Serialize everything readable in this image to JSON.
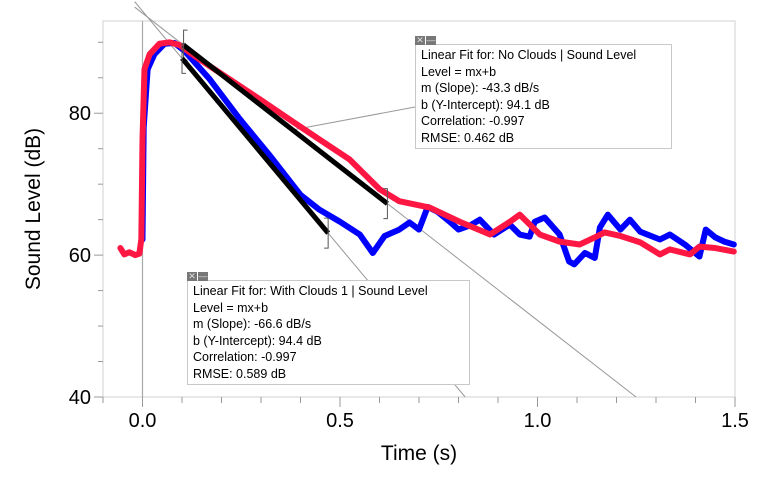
{
  "chart_data": {
    "type": "line",
    "xlabel": "Time (s)",
    "ylabel": "Sound Level (dB)",
    "xlim": [
      -0.1,
      1.5
    ],
    "ylim": [
      40,
      93
    ],
    "xticks": [
      "0.0",
      "0.5",
      "1.0",
      "1.5"
    ],
    "xtick_values": [
      0,
      0.5,
      1.0,
      1.5
    ],
    "yticks": [
      "40",
      "60",
      "80"
    ],
    "ytick_values": [
      40,
      60,
      80
    ],
    "grid": false,
    "series": [
      {
        "name": "With Clouds 1",
        "color": "#0000ff",
        "x": [
          0.0,
          0.003,
          0.013,
          0.03,
          0.056,
          0.081,
          0.106,
          0.17,
          0.246,
          0.32,
          0.4,
          0.448,
          0.5,
          0.55,
          0.583,
          0.613,
          0.65,
          0.676,
          0.7,
          0.722,
          0.747,
          0.778,
          0.8,
          0.83,
          0.854,
          0.89,
          0.93,
          0.955,
          0.98,
          0.993,
          1.018,
          1.056,
          1.08,
          1.093,
          1.12,
          1.145,
          1.158,
          1.178,
          1.21,
          1.234,
          1.26,
          1.31,
          1.335,
          1.373,
          1.41,
          1.426,
          1.45,
          1.473,
          1.497
        ],
        "y": [
          62.2,
          78.0,
          86.2,
          88.3,
          89.8,
          89.9,
          88.8,
          84.8,
          79.2,
          74.2,
          68.5,
          66.4,
          64.7,
          62.9,
          60.3,
          62.7,
          63.6,
          64.6,
          63.6,
          66.8,
          66.1,
          64.7,
          63.6,
          64.2,
          65.0,
          62.9,
          64.3,
          62.9,
          62.6,
          64.7,
          65.3,
          62.9,
          59.1,
          58.7,
          60.3,
          59.6,
          63.9,
          65.7,
          63.6,
          65.0,
          63.3,
          62.2,
          62.9,
          61.5,
          59.8,
          63.6,
          62.5,
          61.9,
          61.5
        ]
      },
      {
        "name": "No Clouds",
        "color": "#ff1744",
        "x": [
          -0.056,
          -0.046,
          -0.033,
          -0.018,
          -0.008,
          -0.003,
          0.0,
          0.005,
          0.018,
          0.043,
          0.068,
          0.094,
          0.144,
          0.22,
          0.296,
          0.37,
          0.448,
          0.524,
          0.6,
          0.65,
          0.727,
          0.803,
          0.88,
          0.93,
          0.955,
          1.006,
          1.056,
          1.107,
          1.145,
          1.17,
          1.21,
          1.26,
          1.31,
          1.335,
          1.386,
          1.41,
          1.45,
          1.497
        ],
        "y": [
          61.0,
          60.1,
          60.4,
          60.0,
          60.2,
          62.2,
          76.3,
          86.2,
          88.3,
          89.8,
          90.0,
          89.6,
          87.6,
          84.8,
          82.0,
          79.2,
          76.3,
          73.5,
          69.3,
          67.6,
          66.7,
          64.7,
          62.9,
          64.7,
          65.7,
          62.9,
          61.9,
          61.5,
          62.5,
          63.2,
          62.7,
          61.8,
          60.1,
          60.8,
          60.1,
          61.2,
          61.0,
          60.5
        ]
      }
    ],
    "fits": [
      {
        "series": "No Clouds",
        "title": "Linear Fit for: No Clouds | Sound Level",
        "equation": "Level = mx+b",
        "slope": "m (Slope): -43.3 dB/s",
        "intercept": "b (Y-Intercept): 94.1 dB",
        "correlation": "Correlation: -0.997",
        "rmse": "RMSE: 0.462 dB",
        "m": -43.3,
        "b": 94.1,
        "range": [
          0.104,
          0.62
        ]
      },
      {
        "series": "With Clouds 1",
        "title": "Linear Fit for: With Clouds 1 | Sound Level",
        "equation": "Level = mx+b",
        "slope": "m (Slope): -66.6 dB/s",
        "intercept": "b (Y-Intercept): 94.4 dB",
        "correlation": "Correlation: -0.997",
        "rmse": "RMSE: 0.589 dB",
        "m": -66.6,
        "b": 94.4,
        "range": [
          0.1,
          0.47
        ]
      }
    ]
  },
  "controls": {
    "close_icon": "close-icon",
    "minimize_icon": "minimize-icon",
    "close_glyph": "✕",
    "minimize_glyph": "—"
  }
}
